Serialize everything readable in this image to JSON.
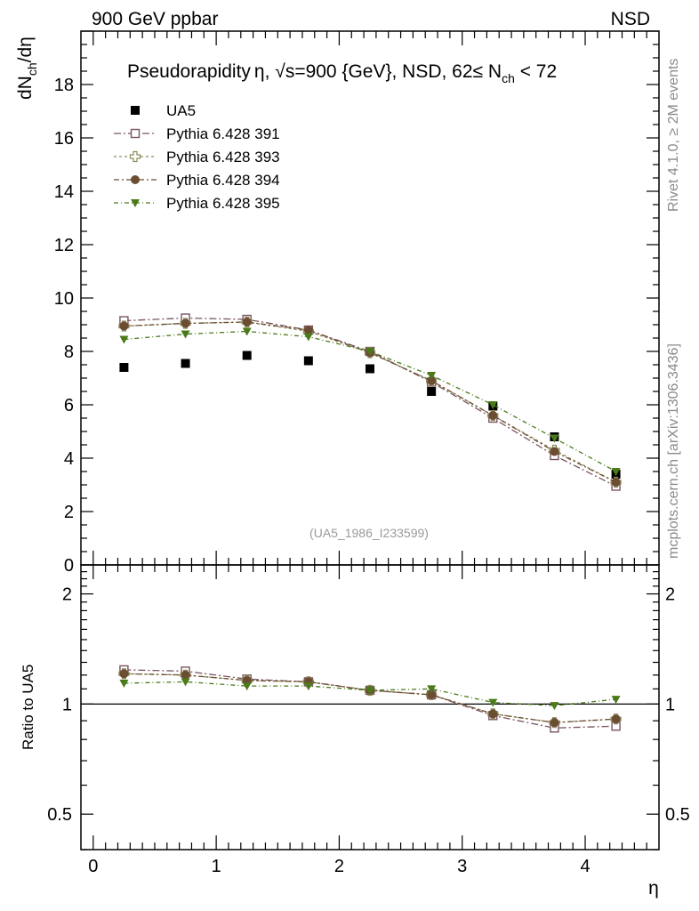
{
  "header": {
    "left": "900 GeV ppbar",
    "right": "NSD"
  },
  "side_labels": {
    "rivet": "Rivet 4.1.0, ≥ 2M events",
    "mcplots": "mcplots.cern.ch [arXiv:1306.3436]"
  },
  "chart_data": [
    {
      "type": "scatter",
      "title": "Pseudorapidity η, √s=900 {GeV}, NSD, 62≤ N_ch < 72",
      "title_parts": {
        "a": "Pseudorapidity",
        "b": "η, ",
        "c": "√",
        "d": "s=900 {GeV}, NSD, 62",
        "e": "≤",
        "f": " N",
        "g": "ch",
        "h": " < 72"
      },
      "ylabel": "dN_ch/dη",
      "ylabel_parts": {
        "a": "dN",
        "b": "ch",
        "c": "/dη"
      },
      "ylim": [
        0,
        20
      ],
      "xlim": [
        -0.1,
        4.6
      ],
      "y_ticks": [
        0,
        2,
        4,
        6,
        8,
        10,
        12,
        14,
        16,
        18
      ],
      "watermark": "(UA5_1986_I233599)",
      "x": [
        0.25,
        0.75,
        1.25,
        1.75,
        2.25,
        2.75,
        3.25,
        3.75,
        4.25
      ],
      "series": [
        {
          "name": "UA5",
          "marker": "filled-square",
          "color": "#000000",
          "values": [
            7.4,
            7.55,
            7.85,
            7.65,
            7.35,
            6.5,
            5.95,
            4.8,
            3.4
          ]
        },
        {
          "name": "Pythia 6.428 391",
          "marker": "open-square",
          "color": "#7a5560",
          "values": [
            9.15,
            9.25,
            9.2,
            8.8,
            8.0,
            6.85,
            5.5,
            4.1,
            2.95
          ]
        },
        {
          "name": "Pythia 6.428 393",
          "marker": "open-cross",
          "color": "#8c8a5a",
          "values": [
            8.95,
            9.05,
            9.1,
            8.75,
            7.95,
            6.9,
            5.6,
            4.3,
            3.1
          ]
        },
        {
          "name": "Pythia 6.428 394",
          "marker": "filled-circle",
          "color": "#6b4d32",
          "values": [
            8.95,
            9.05,
            9.1,
            8.8,
            7.95,
            6.9,
            5.6,
            4.25,
            3.1
          ]
        },
        {
          "name": "Pythia 6.428 395",
          "marker": "filled-triangle-down",
          "color": "#4a7a1a",
          "values": [
            8.45,
            8.65,
            8.75,
            8.55,
            8.0,
            7.1,
            6.0,
            4.75,
            3.5
          ]
        }
      ]
    },
    {
      "type": "scatter",
      "title": "",
      "ylabel": "Ratio to UA5",
      "xlabel": "η",
      "ylim": [
        0.4,
        2.4
      ],
      "y_scale": "log",
      "y_ticks": [
        0.5,
        1,
        2
      ],
      "y_tick_labels": [
        "0.5",
        "1",
        "2"
      ],
      "xlim": [
        -0.1,
        4.6
      ],
      "x_ticks": [
        0,
        1,
        2,
        3,
        4
      ],
      "x_tick_labels": [
        "0",
        "1",
        "2",
        "3",
        "4"
      ],
      "reference_line": 1,
      "x": [
        0.25,
        0.75,
        1.25,
        1.75,
        2.25,
        2.75,
        3.25,
        3.75,
        4.25
      ],
      "series": [
        {
          "name": "Pythia 6.428 391",
          "marker": "open-square",
          "color": "#7a5560",
          "values": [
            1.24,
            1.23,
            1.17,
            1.15,
            1.09,
            1.06,
            0.93,
            0.86,
            0.87
          ]
        },
        {
          "name": "Pythia 6.428 393",
          "marker": "open-cross",
          "color": "#8c8a5a",
          "values": [
            1.21,
            1.2,
            1.16,
            1.15,
            1.09,
            1.06,
            0.94,
            0.89,
            0.91
          ]
        },
        {
          "name": "Pythia 6.428 394",
          "marker": "filled-circle",
          "color": "#6b4d32",
          "values": [
            1.21,
            1.2,
            1.16,
            1.15,
            1.09,
            1.06,
            0.94,
            0.89,
            0.91
          ]
        },
        {
          "name": "Pythia 6.428 395",
          "marker": "filled-triangle-down",
          "color": "#4a7a1a",
          "values": [
            1.14,
            1.15,
            1.12,
            1.12,
            1.09,
            1.1,
            1.01,
            0.99,
            1.03
          ]
        }
      ]
    }
  ]
}
